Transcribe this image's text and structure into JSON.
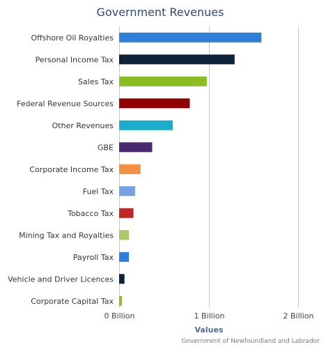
{
  "chart_data": {
    "type": "bar",
    "orientation": "horizontal",
    "title": "Government Revenues",
    "xlabel": "Values",
    "xlim": [
      0,
      2000000000
    ],
    "tick_values": [
      0,
      1000000000,
      2000000000
    ],
    "tick_labels": [
      "0 Billion",
      "1 Billion",
      "2 Billion"
    ],
    "grid": true,
    "categories": [
      "Offshore Oil Royalties",
      "Personal Income Tax",
      "Sales Tax",
      "Federal Revenue Sources",
      "Other Revenues",
      "GBE",
      "Corporate Income Tax",
      "Fuel Tax",
      "Tobacco Tax",
      "Mining Tax and Royalties",
      "Payroll Tax",
      "Vehicle and Driver Licences",
      "Corporate Capital Tax"
    ],
    "values": [
      1590000000,
      1290000000,
      980000000,
      790000000,
      600000000,
      370000000,
      240000000,
      180000000,
      160000000,
      110000000,
      110000000,
      60000000,
      30000000
    ],
    "colors": [
      "#2f7ed8",
      "#0d233a",
      "#8bbc21",
      "#910000",
      "#1aadce",
      "#492970",
      "#f28f43",
      "#77a1e5",
      "#c42525",
      "#a6c96a",
      "#2f7ed8",
      "#0d233a",
      "#8bbc21"
    ],
    "credit": "Government of Newfoundland and Labrador"
  }
}
